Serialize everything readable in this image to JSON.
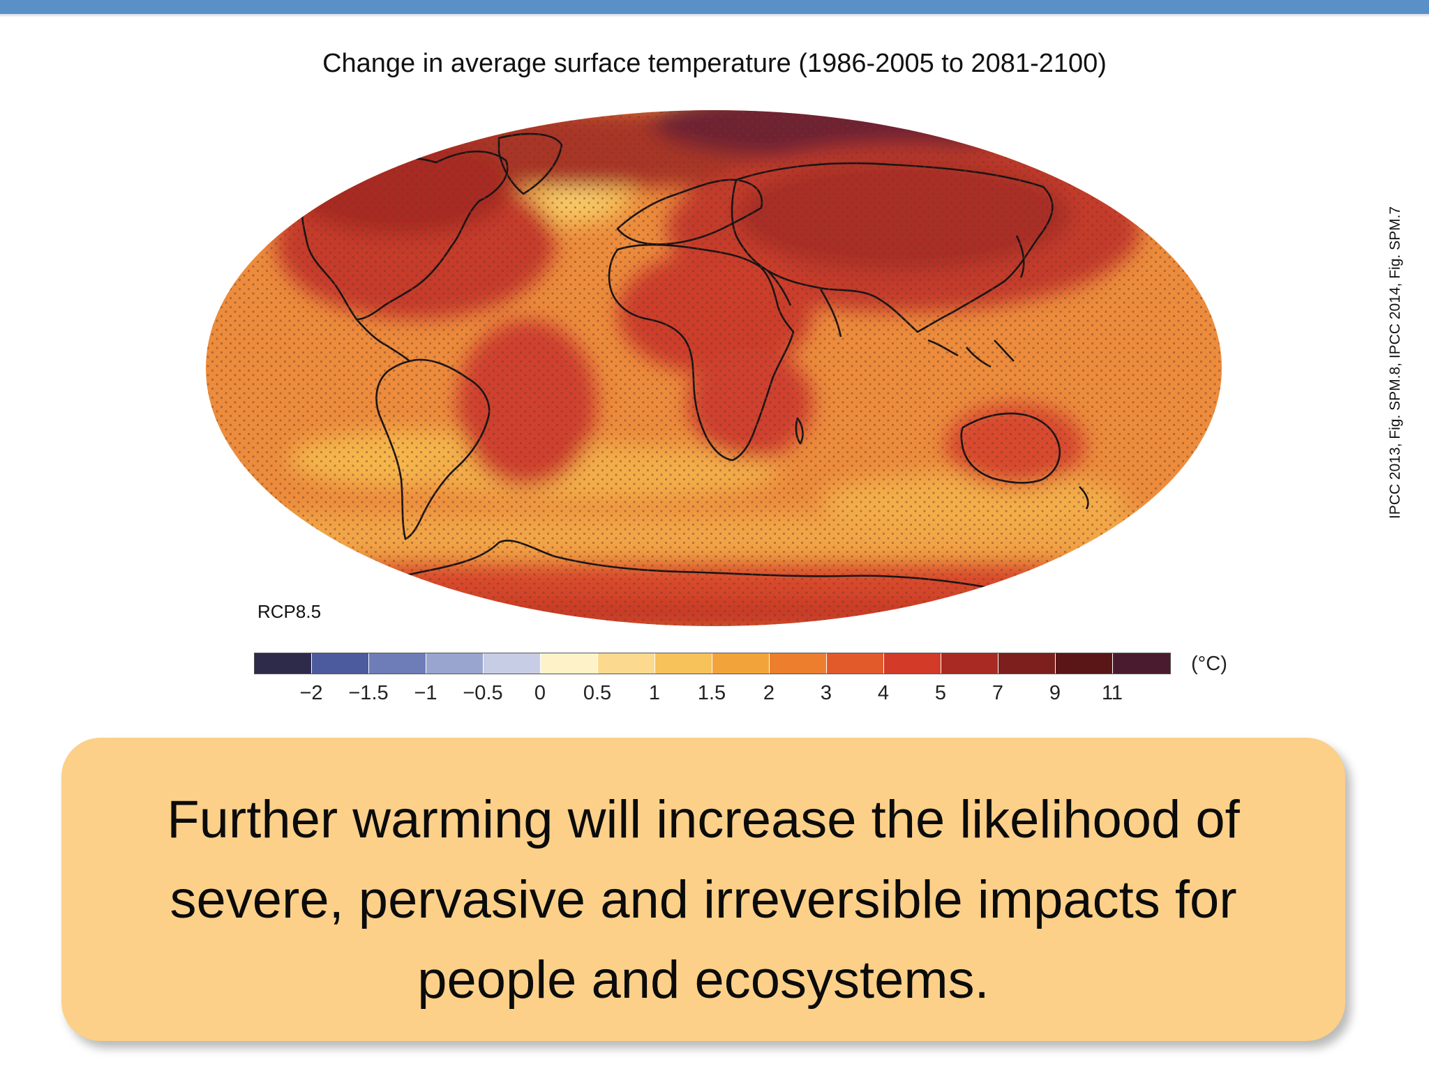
{
  "title": "Change in average surface temperature (1986-2005 to 2081-2100)",
  "scenario_label": "RCP8.5",
  "credit": "IPCC 2013, Fig. SPM.8, IPCC 2014, Fig. SPM.7",
  "colorbar": {
    "unit": "(°C)",
    "ticks": [
      "−2",
      "−1.5",
      "−1",
      "−0.5",
      "0",
      "0.5",
      "1",
      "1.5",
      "2",
      "3",
      "4",
      "5",
      "7",
      "9",
      "11"
    ],
    "colors": [
      "#2d2a4a",
      "#4c5a9e",
      "#6e7cb8",
      "#9aa5cf",
      "#c8cde6",
      "#fef2c8",
      "#fbd98e",
      "#f7c25a",
      "#f2a43a",
      "#ec7e2e",
      "#e35a2a",
      "#d33a28",
      "#a82a22",
      "#7d1f1c",
      "#5a1616",
      "#4a1b2e"
    ]
  },
  "callout": {
    "text": "Further warming will increase the likelihood of severe, pervasive and irreversible impacts for people and ecosystems."
  }
}
